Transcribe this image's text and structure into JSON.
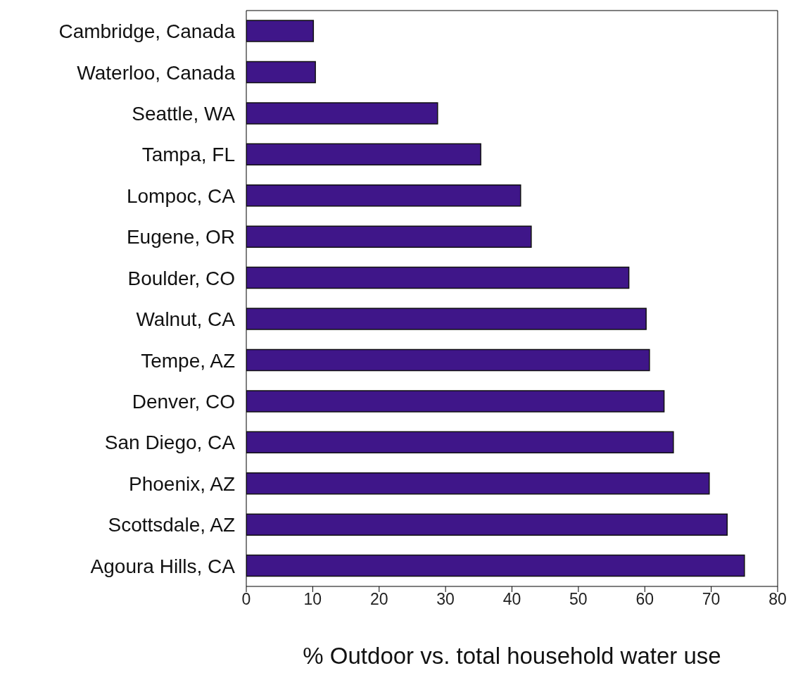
{
  "chart_data": {
    "type": "bar",
    "orientation": "horizontal",
    "xlabel": "% Outdoor vs. total household water use",
    "categories": [
      "Cambridge, Canada",
      "Waterloo, Canada",
      "Seattle, WA",
      "Tampa, FL",
      "Lompoc, CA",
      "Eugene, OR",
      "Boulder, CO",
      "Walnut, CA",
      "Tempe, AZ",
      "Denver, CO",
      "San Diego, CA",
      "Phoenix, AZ",
      "Scottsdale, AZ",
      "Agoura Hills, CA"
    ],
    "values": [
      10.1,
      10.4,
      28.8,
      35.3,
      41.3,
      42.9,
      57.6,
      60.2,
      60.7,
      62.9,
      64.3,
      69.7,
      72.4,
      75.0
    ],
    "color": "#3f1689",
    "xlim": [
      0,
      80
    ],
    "xticks": [
      0,
      10,
      20,
      30,
      40,
      50,
      60,
      70,
      80
    ],
    "grid": false,
    "legend": false
  }
}
